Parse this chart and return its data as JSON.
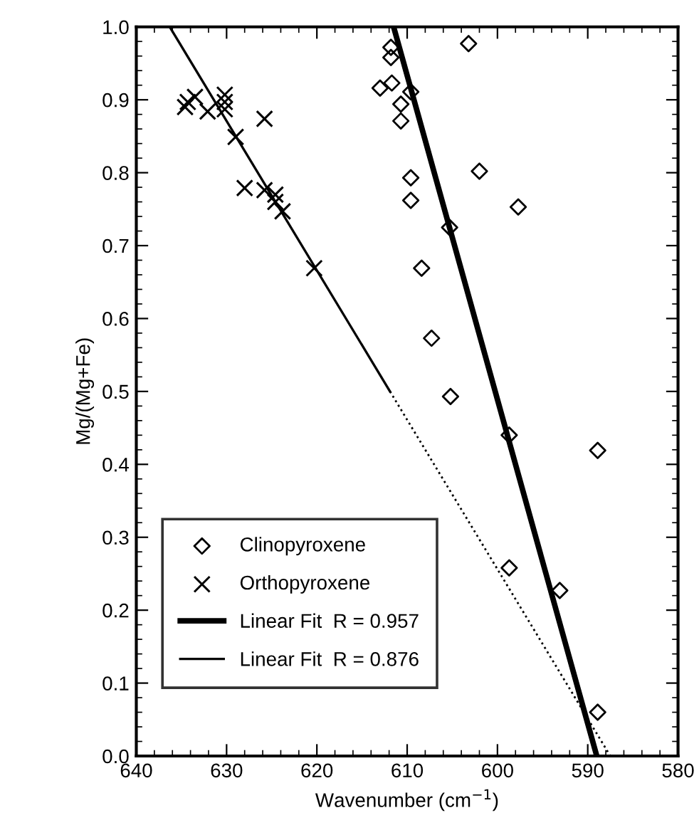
{
  "chart_data": {
    "type": "scatter",
    "xlabel": "Wavenumber (cm$^{−1}$)",
    "ylabel": "Mg/(Mg+Fe)",
    "xlim": [
      640,
      580
    ],
    "ylim": [
      0,
      1
    ],
    "xticks": [
      640,
      630,
      620,
      610,
      600,
      590,
      580
    ],
    "yticks": [
      {
        "value": 0,
        "label": "0.0"
      },
      0.1,
      0.2,
      0.3,
      0.4,
      0.5,
      0.6,
      0.7,
      0.8,
      0.9,
      {
        "value": 1,
        "label": "1.0"
      }
    ],
    "grid": false,
    "legend": "bottom left",
    "series": [
      {
        "name": "Clinopyroxene",
        "marker": "diamond",
        "color": "#000000",
        "x": [
          611.8,
          611.8,
          613,
          611.7,
          610.7,
          610.7,
          603.2,
          609.6,
          609.6,
          609.6,
          602,
          597.7,
          605.3,
          608.4,
          607.3,
          605.2,
          598.7,
          588.9,
          598.7,
          593.1,
          588.9
        ],
        "values": [
          0.972,
          0.958,
          0.916,
          0.923,
          0.894,
          0.871,
          0.977,
          0.911,
          0.793,
          0.762,
          0.802,
          0.753,
          0.725,
          0.669,
          0.573,
          0.493,
          0.44,
          0.419,
          0.258,
          0.227,
          0.06
        ]
      },
      {
        "name": "Orthopyroxene",
        "marker": "cross",
        "color": "#000000",
        "x": [
          634.6,
          634.3,
          633.5,
          632.1,
          630.2,
          630.2,
          630.2,
          625.8,
          629,
          628,
          625.8,
          624.6,
          624.6,
          623.8,
          620.3
        ],
        "values": [
          0.89,
          0.897,
          0.904,
          0.884,
          0.907,
          0.897,
          0.887,
          0.874,
          0.849,
          0.779,
          0.776,
          0.77,
          0.76,
          0.747,
          0.669
        ]
      },
      {
        "name": "Linear Fit  R = 0.957",
        "type": "line",
        "line_style": "solid",
        "color": "#000000",
        "x": [
          611.5,
          589
        ],
        "values": [
          1.0,
          0.0
        ]
      },
      {
        "name": "Linear Fit  R = 0.876",
        "type": "line",
        "line_style": "solid",
        "color": "#000000",
        "x": [
          636.3,
          611.9
        ],
        "values": [
          1.0,
          0.5
        ]
      },
      {
        "type": "line",
        "line_style": "dotted",
        "color": "#000000",
        "x": [
          611.9,
          587.5
        ],
        "values": [
          0.5,
          0.0
        ]
      }
    ]
  }
}
